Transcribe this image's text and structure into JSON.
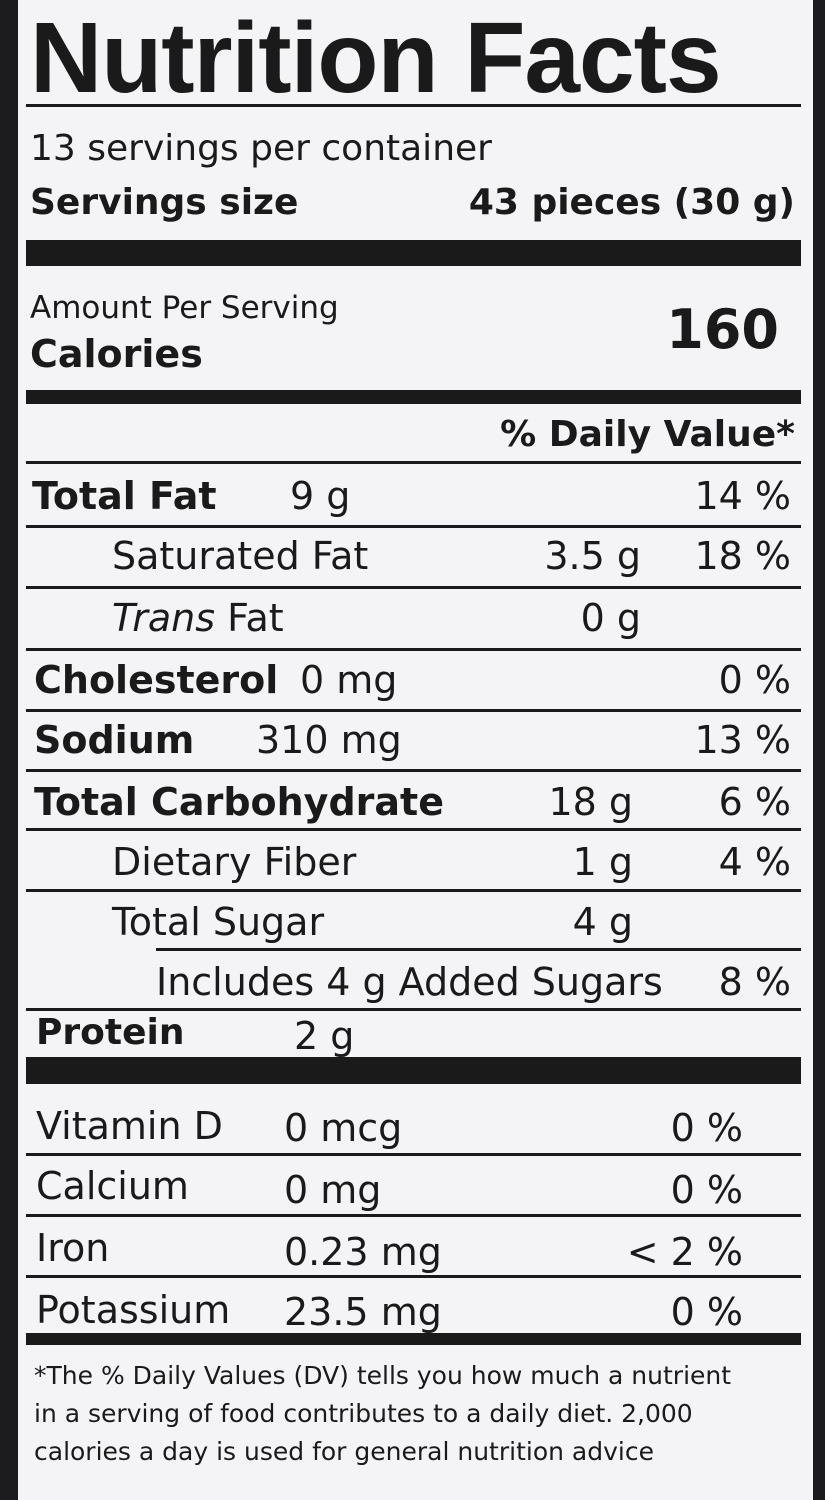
{
  "title": "Nutrition Facts",
  "servings_per_container": "13 servings per container",
  "serving_size_label": "Servings size",
  "serving_size_value": "43 pieces (30 g)",
  "amount_per_serving": "Amount Per Serving",
  "calories_label": "Calories",
  "calories_value": "160",
  "dv_header": "% Daily Value*",
  "nutrients": {
    "total_fat": {
      "label": "Total Fat",
      "amount": "9 g",
      "dv": "14 %"
    },
    "saturated_fat": {
      "label": "Saturated Fat",
      "amount": "3.5 g",
      "dv": "18 %"
    },
    "trans_fat": {
      "label_italic": "Trans",
      "label": " Fat",
      "amount": "0 g"
    },
    "cholesterol": {
      "label": "Cholesterol",
      "amount": "0 mg",
      "dv": "0 %"
    },
    "sodium": {
      "label": "Sodium",
      "amount": "310 mg",
      "dv": "13 %"
    },
    "total_carbohydrate": {
      "label": "Total Carbohydrate",
      "amount": "18 g",
      "dv": "6 %"
    },
    "dietary_fiber": {
      "label": "Dietary Fiber",
      "amount": "1 g",
      "dv": "4 %"
    },
    "total_sugar": {
      "label": "Total Sugar",
      "amount": "4 g"
    },
    "added_sugars": {
      "label": "Includes 4 g Added Sugars",
      "dv": "8 %"
    },
    "protein": {
      "label": "Protein",
      "amount": "2 g"
    }
  },
  "vitamins": {
    "vitamin_d": {
      "label": "Vitamin D",
      "amount": "0 mcg",
      "dv": "0 %"
    },
    "calcium": {
      "label": "Calcium",
      "amount": "0 mg",
      "dv": "0 %"
    },
    "iron": {
      "label": "Iron",
      "amount": "0.23 mg",
      "dv": "< 2 %"
    },
    "potassium": {
      "label": "Potassium",
      "amount": "23.5 mg",
      "dv": "0 %"
    }
  },
  "footnote": {
    "line1": "*The % Daily Values (DV) tells you how much a nutrient",
    "line2": "in a serving of food contributes to a daily diet. 2,000",
    "line3": "calories a day is used for general nutrition advice"
  }
}
